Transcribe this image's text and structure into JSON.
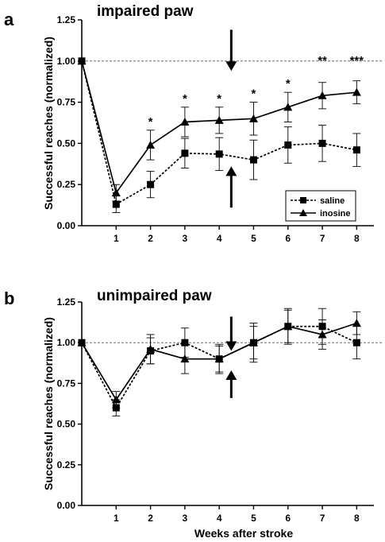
{
  "chart_data": [
    {
      "panel_letter": "a",
      "title": "impaired paw",
      "type": "line",
      "ylabel": "Successful reaches (normalized)",
      "xlabel": "",
      "x_ticks": [
        1,
        2,
        3,
        4,
        5,
        6,
        7,
        8
      ],
      "y_ticks": [
        "0.00",
        "0.25",
        "0.50",
        "0.75",
        "1.00",
        "1.25"
      ],
      "xlim": [
        0,
        8.5
      ],
      "ylim": [
        0,
        1.25
      ],
      "reference_line": 1.0,
      "legend_position": "bottom-right",
      "series": [
        {
          "name": "saline",
          "marker": "square",
          "line_style": "dashed",
          "x": [
            0,
            1,
            2,
            3,
            4,
            5,
            6,
            7,
            8
          ],
          "y": [
            1.0,
            0.13,
            0.25,
            0.44,
            0.435,
            0.4,
            0.49,
            0.5,
            0.46
          ],
          "err": [
            0,
            0.05,
            0.08,
            0.09,
            0.1,
            0.12,
            0.11,
            0.11,
            0.1
          ]
        },
        {
          "name": "inosine",
          "marker": "triangle",
          "line_style": "solid",
          "x": [
            0,
            1,
            2,
            3,
            4,
            5,
            6,
            7,
            8
          ],
          "y": [
            1.0,
            0.2,
            0.49,
            0.63,
            0.64,
            0.65,
            0.72,
            0.79,
            0.81
          ],
          "err": [
            0,
            0.05,
            0.09,
            0.09,
            0.08,
            0.1,
            0.09,
            0.08,
            0.07
          ]
        }
      ],
      "significance": [
        {
          "x": 2,
          "label": "*"
        },
        {
          "x": 3,
          "label": "*"
        },
        {
          "x": 4,
          "label": "*"
        },
        {
          "x": 5,
          "label": "*"
        },
        {
          "x": 6,
          "label": "*"
        },
        {
          "x": 7,
          "label": "**"
        },
        {
          "x": 8,
          "label": "***"
        }
      ],
      "arrows_at_x": 4.35
    },
    {
      "panel_letter": "b",
      "title": "unimpaired paw",
      "type": "line",
      "ylabel": "Successful reaches (normalized)",
      "xlabel": "Weeks after stroke",
      "x_ticks": [
        1,
        2,
        3,
        4,
        5,
        6,
        7,
        8
      ],
      "y_ticks": [
        "0.00",
        "0.25",
        "0.50",
        "0.75",
        "1.00",
        "1.25"
      ],
      "xlim": [
        0,
        8.5
      ],
      "ylim": [
        0,
        1.25
      ],
      "reference_line": 1.0,
      "series": [
        {
          "name": "saline",
          "marker": "square",
          "line_style": "dashed",
          "x": [
            0,
            1,
            2,
            3,
            4,
            5,
            6,
            7,
            8
          ],
          "y": [
            1.0,
            0.6,
            0.95,
            1.0,
            0.9,
            1.0,
            1.1,
            1.1,
            1.0
          ],
          "err": [
            0,
            0.05,
            0.08,
            0.09,
            0.09,
            0.1,
            0.1,
            0.11,
            0.1
          ]
        },
        {
          "name": "inosine",
          "marker": "triangle",
          "line_style": "solid",
          "x": [
            0,
            1,
            2,
            3,
            4,
            5,
            6,
            7,
            8
          ],
          "y": [
            1.0,
            0.65,
            0.96,
            0.9,
            0.9,
            1.0,
            1.1,
            1.05,
            1.12
          ],
          "err": [
            0,
            0.05,
            0.09,
            0.09,
            0.08,
            0.12,
            0.11,
            0.09,
            0.07
          ]
        }
      ],
      "arrows_at_x": 4.35
    }
  ]
}
